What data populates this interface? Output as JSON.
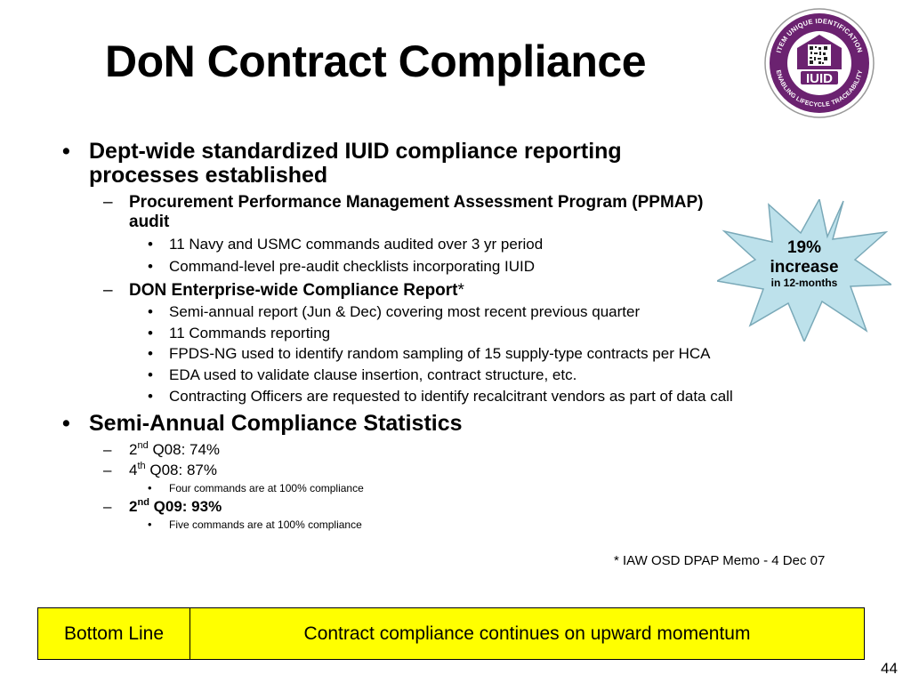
{
  "title": "DoN Contract Compliance",
  "seal": {
    "ring_text_top": "ITEM UNIQUE IDENTIFICATION",
    "ring_text_bottom": "ENABLING LIFECYCLE TRACEABILITY",
    "center_label": "IUID"
  },
  "starburst": {
    "line1": "19%",
    "line2": "increase",
    "line3": "in 12-months"
  },
  "bullet_char": "•",
  "dash_char": "–",
  "content": {
    "b1_label": "Dept-wide standardized IUID compliance reporting",
    "b1_label_cont": "processes established",
    "ppmap_label": "Procurement Performance Management Assessment Program (PPMAP)",
    "ppmap_label_cont": "audit",
    "ppmap_items": [
      "11 Navy and USMC commands audited over 3 yr period",
      "Command-level pre-audit checklists incorporating IUID"
    ],
    "don_report_label": "DON Enterprise-wide Compliance Report",
    "don_report_star": "*",
    "don_report_items": [
      "Semi-annual report (Jun & Dec) covering most recent previous quarter",
      "11 Commands reporting",
      "FPDS-NG used to identify random sampling of 15 supply-type contracts per HCA",
      "EDA used to validate clause insertion, contract structure, etc.",
      "Contracting Officers are requested to identify recalcitrant vendors as part of data call"
    ],
    "b2_label": "Semi-Annual Compliance Statistics",
    "stats": [
      {
        "prefix": "2",
        "sup": "nd",
        "rest": " Q08: 74%"
      },
      {
        "prefix": "4",
        "sup": "th",
        "rest": " Q08: 87%",
        "note": "Four commands are at 100% compliance"
      },
      {
        "prefix": "2",
        "sup": "nd",
        "rest": " Q09: 93%",
        "note": "Five commands are at 100% compliance"
      }
    ]
  },
  "footnote": "* IAW OSD DPAP Memo - 4 Dec 07",
  "bottom_line": {
    "label": "Bottom Line",
    "text": "Contract compliance continues on upward momentum"
  },
  "page_number": "44",
  "colors": {
    "seal_ring": "#6b2270",
    "starburst_fill": "#bde1eb",
    "bottom_box": "#ffff00"
  }
}
